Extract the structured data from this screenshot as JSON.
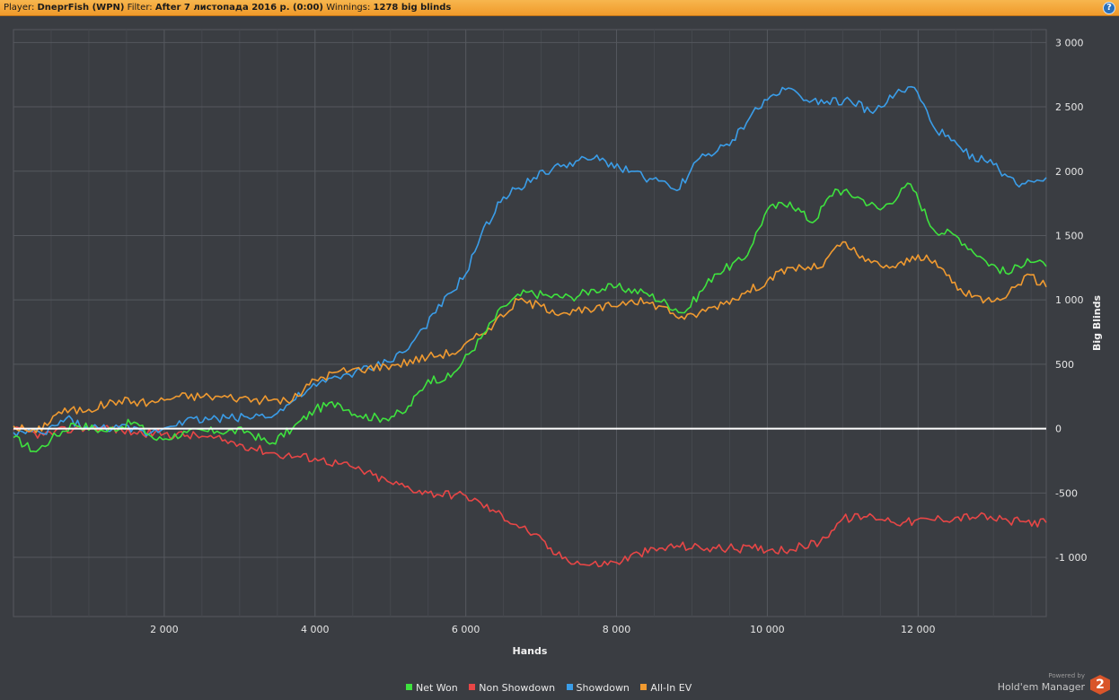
{
  "header": {
    "player_label": "Player:",
    "player_value": "DneprFish (WPN)",
    "filter_label": "Filter:",
    "filter_value": "After 7 листопада 2016 р. (0:00)",
    "winnings_label": "Winnings:",
    "winnings_value": "1278 big blinds",
    "help_label": "?"
  },
  "chart_data": {
    "type": "line",
    "xlabel": "Hands",
    "ylabel": "Big Blinds",
    "xlim": [
      0,
      13700
    ],
    "ylim": [
      -1460,
      3100
    ],
    "x_ticks": [
      2000,
      4000,
      6000,
      8000,
      10000,
      12000
    ],
    "x_tick_labels": [
      "2 000",
      "4 000",
      "6 000",
      "8 000",
      "10 000",
      "12 000"
    ],
    "y_ticks": [
      -1000,
      -500,
      0,
      500,
      1000,
      1500,
      2000,
      2500,
      3000
    ],
    "y_tick_labels": [
      "-1 000",
      "-500",
      "0",
      "500",
      "1 000",
      "1 500",
      "2 000",
      "2 500",
      "3 000"
    ],
    "grid": true,
    "legend_position": "bottom-center",
    "series": [
      {
        "name": "Net Won",
        "color": "#3ee23e",
        "points": [
          [
            0,
            -70
          ],
          [
            300,
            -180
          ],
          [
            500,
            -80
          ],
          [
            800,
            40
          ],
          [
            1200,
            -20
          ],
          [
            1600,
            50
          ],
          [
            1900,
            -90
          ],
          [
            2300,
            -30
          ],
          [
            2700,
            -20
          ],
          [
            3100,
            -20
          ],
          [
            3400,
            -120
          ],
          [
            3700,
            0
          ],
          [
            4000,
            150
          ],
          [
            4300,
            200
          ],
          [
            4600,
            100
          ],
          [
            4900,
            80
          ],
          [
            5200,
            130
          ],
          [
            5500,
            380
          ],
          [
            5800,
            400
          ],
          [
            6200,
            700
          ],
          [
            6500,
            950
          ],
          [
            6800,
            1060
          ],
          [
            7100,
            1030
          ],
          [
            7400,
            1020
          ],
          [
            7700,
            1080
          ],
          [
            8000,
            1100
          ],
          [
            8400,
            1050
          ],
          [
            8900,
            900
          ],
          [
            9300,
            1200
          ],
          [
            9700,
            1320
          ],
          [
            10000,
            1700
          ],
          [
            10300,
            1760
          ],
          [
            10600,
            1600
          ],
          [
            10900,
            1860
          ],
          [
            11200,
            1800
          ],
          [
            11500,
            1700
          ],
          [
            11900,
            1900
          ],
          [
            12200,
            1550
          ],
          [
            12500,
            1500
          ],
          [
            12900,
            1300
          ],
          [
            13200,
            1200
          ],
          [
            13450,
            1320
          ],
          [
            13700,
            1260
          ]
        ]
      },
      {
        "name": "Non Showdown",
        "color": "#e84646",
        "points": [
          [
            0,
            -10
          ],
          [
            400,
            -50
          ],
          [
            800,
            0
          ],
          [
            1200,
            10
          ],
          [
            1600,
            -30
          ],
          [
            2000,
            -40
          ],
          [
            2500,
            -60
          ],
          [
            3000,
            -120
          ],
          [
            3500,
            -200
          ],
          [
            4000,
            -230
          ],
          [
            4500,
            -300
          ],
          [
            5000,
            -420
          ],
          [
            5500,
            -500
          ],
          [
            6000,
            -520
          ],
          [
            6400,
            -650
          ],
          [
            6900,
            -820
          ],
          [
            7200,
            -980
          ],
          [
            7600,
            -1060
          ],
          [
            8000,
            -1040
          ],
          [
            8300,
            -970
          ],
          [
            8800,
            -910
          ],
          [
            9200,
            -930
          ],
          [
            9800,
            -930
          ],
          [
            10300,
            -940
          ],
          [
            10700,
            -880
          ],
          [
            11000,
            -700
          ],
          [
            11400,
            -680
          ],
          [
            11800,
            -730
          ],
          [
            12300,
            -700
          ],
          [
            12800,
            -680
          ],
          [
            13200,
            -720
          ],
          [
            13700,
            -730
          ]
        ]
      },
      {
        "name": "Showdown",
        "color": "#3a9de8",
        "points": [
          [
            0,
            -30
          ],
          [
            400,
            -40
          ],
          [
            700,
            80
          ],
          [
            1000,
            0
          ],
          [
            1400,
            10
          ],
          [
            1800,
            -40
          ],
          [
            2200,
            60
          ],
          [
            2700,
            80
          ],
          [
            3100,
            90
          ],
          [
            3500,
            120
          ],
          [
            3900,
            300
          ],
          [
            4300,
            400
          ],
          [
            4800,
            480
          ],
          [
            5200,
            600
          ],
          [
            5600,
            900
          ],
          [
            6000,
            1200
          ],
          [
            6200,
            1500
          ],
          [
            6500,
            1800
          ],
          [
            6900,
            1950
          ],
          [
            7300,
            2050
          ],
          [
            7700,
            2100
          ],
          [
            8200,
            2000
          ],
          [
            8800,
            1850
          ],
          [
            9100,
            2100
          ],
          [
            9500,
            2200
          ],
          [
            9800,
            2450
          ],
          [
            10200,
            2650
          ],
          [
            10600,
            2550
          ],
          [
            11100,
            2550
          ],
          [
            11400,
            2450
          ],
          [
            11700,
            2600
          ],
          [
            11950,
            2650
          ],
          [
            12200,
            2350
          ],
          [
            12600,
            2150
          ],
          [
            13000,
            2050
          ],
          [
            13300,
            1900
          ],
          [
            13700,
            1950
          ]
        ]
      },
      {
        "name": "All-In EV",
        "color": "#f09a30",
        "points": [
          [
            0,
            20
          ],
          [
            300,
            -30
          ],
          [
            600,
            130
          ],
          [
            1000,
            150
          ],
          [
            1400,
            220
          ],
          [
            1800,
            200
          ],
          [
            2200,
            250
          ],
          [
            2600,
            250
          ],
          [
            3000,
            240
          ],
          [
            3300,
            220
          ],
          [
            3700,
            220
          ],
          [
            4000,
            380
          ],
          [
            4300,
            440
          ],
          [
            4700,
            470
          ],
          [
            5100,
            500
          ],
          [
            5500,
            560
          ],
          [
            5900,
            600
          ],
          [
            6300,
            780
          ],
          [
            6700,
            1000
          ],
          [
            7000,
            950
          ],
          [
            7300,
            900
          ],
          [
            7700,
            920
          ],
          [
            8200,
            1000
          ],
          [
            8600,
            950
          ],
          [
            8900,
            850
          ],
          [
            9300,
            950
          ],
          [
            9700,
            1050
          ],
          [
            10000,
            1150
          ],
          [
            10300,
            1250
          ],
          [
            10700,
            1250
          ],
          [
            11000,
            1450
          ],
          [
            11300,
            1300
          ],
          [
            11700,
            1250
          ],
          [
            12000,
            1350
          ],
          [
            12300,
            1250
          ],
          [
            12600,
            1050
          ],
          [
            12900,
            1000
          ],
          [
            13200,
            1050
          ],
          [
            13450,
            1200
          ],
          [
            13700,
            1100
          ]
        ]
      }
    ],
    "baseline": {
      "y": 0,
      "color": "#ffffff"
    }
  },
  "branding": {
    "powered_by": "Powered by",
    "product": "Hold'em Manager",
    "logo_digit": "2"
  }
}
